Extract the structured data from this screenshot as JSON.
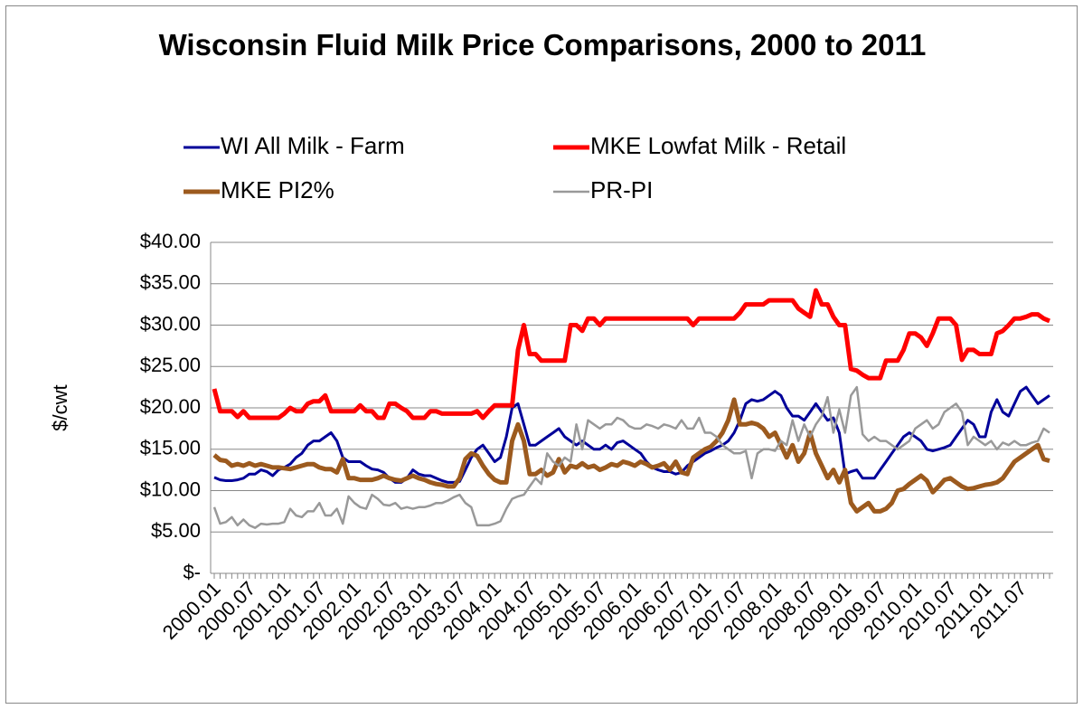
{
  "chart_data": {
    "type": "line",
    "title": "Wisconsin Fluid Milk Price Comparisons, 2000 to 2011",
    "y_label": "$/cwt",
    "categories": [
      "2000.01",
      null,
      null,
      null,
      null,
      null,
      "2000.07",
      null,
      null,
      null,
      null,
      null,
      "2001.01",
      null,
      null,
      null,
      null,
      null,
      "2001.07",
      null,
      null,
      null,
      null,
      null,
      "2002.01",
      null,
      null,
      null,
      null,
      null,
      "2002.07",
      null,
      null,
      null,
      null,
      null,
      "2003.01",
      null,
      null,
      null,
      null,
      null,
      "2003.07",
      null,
      null,
      null,
      null,
      null,
      "2004.01",
      null,
      null,
      null,
      null,
      null,
      "2004.07",
      null,
      null,
      null,
      null,
      null,
      "2005.01",
      null,
      null,
      null,
      null,
      null,
      "2005.07",
      null,
      null,
      null,
      null,
      null,
      "2006.01",
      null,
      null,
      null,
      null,
      null,
      "2006.07",
      null,
      null,
      null,
      null,
      null,
      "2007.01",
      null,
      null,
      null,
      null,
      null,
      "2007.07",
      null,
      null,
      null,
      null,
      null,
      "2008.01",
      null,
      null,
      null,
      null,
      null,
      "2008.07",
      null,
      null,
      null,
      null,
      null,
      "2009.01",
      null,
      null,
      null,
      null,
      null,
      "2009.07",
      null,
      null,
      null,
      null,
      null,
      "2010.01",
      null,
      null,
      null,
      null,
      null,
      "2010.07",
      null,
      null,
      null,
      null,
      null,
      "2011.01",
      null,
      null,
      null,
      null,
      null,
      "2011.07",
      null,
      null,
      null,
      null,
      null
    ],
    "series": [
      {
        "name": "WI All Milk - Farm",
        "color": "#000099",
        "width": 3,
        "values": [
          11.6,
          11.3,
          11.2,
          11.2,
          11.3,
          11.5,
          12.0,
          12.0,
          12.5,
          12.3,
          11.8,
          12.5,
          12.8,
          13.2,
          14.0,
          14.5,
          15.5,
          16.0,
          16.0,
          16.5,
          17.0,
          16.0,
          14.0,
          13.5,
          13.5,
          13.5,
          13.0,
          12.6,
          12.5,
          12.2,
          11.5,
          11.0,
          11.0,
          11.5,
          12.5,
          12.0,
          11.8,
          11.8,
          11.5,
          11.2,
          11.0,
          11.0,
          11.1,
          12.5,
          14.0,
          15.0,
          15.5,
          14.5,
          13.5,
          14.0,
          16.5,
          20.0,
          20.5,
          18.0,
          15.5,
          15.5,
          16.0,
          16.5,
          17.0,
          17.5,
          16.5,
          16.0,
          15.5,
          16.0,
          15.5,
          15.0,
          15.0,
          15.5,
          15.0,
          15.8,
          16.0,
          15.5,
          15.0,
          14.5,
          13.5,
          12.8,
          12.5,
          12.3,
          12.3,
          12.0,
          12.2,
          13.0,
          13.5,
          14.0,
          14.5,
          14.8,
          15.2,
          15.5,
          16.0,
          17.0,
          18.5,
          20.5,
          21.0,
          20.8,
          21.0,
          21.5,
          22.0,
          21.5,
          20.0,
          19.0,
          19.0,
          18.5,
          19.5,
          20.5,
          19.5,
          18.5,
          18.8,
          17.0,
          12.0,
          12.3,
          12.5,
          11.5,
          11.5,
          11.5,
          12.5,
          13.5,
          14.5,
          15.5,
          16.5,
          17.0,
          16.5,
          16.0,
          15.0,
          14.8,
          15.0,
          15.2,
          15.5,
          16.5,
          17.5,
          18.5,
          18.0,
          16.5,
          16.5,
          19.5,
          21.0,
          19.5,
          19.0,
          20.5,
          22.0,
          22.5,
          21.5,
          20.5,
          21.0,
          21.5
        ]
      },
      {
        "name": "MKE Lowfat Milk - Retail",
        "color": "#ff0000",
        "width": 5,
        "values": [
          22.3,
          19.6,
          19.6,
          19.6,
          18.9,
          19.6,
          18.8,
          18.8,
          18.8,
          18.8,
          18.8,
          18.8,
          19.3,
          20.0,
          19.6,
          19.6,
          20.5,
          20.8,
          20.8,
          21.5,
          19.6,
          19.6,
          19.6,
          19.6,
          19.6,
          20.3,
          19.6,
          19.6,
          18.8,
          18.8,
          20.5,
          20.5,
          20.0,
          19.6,
          18.8,
          18.8,
          18.8,
          19.6,
          19.6,
          19.3,
          19.3,
          19.3,
          19.3,
          19.3,
          19.3,
          19.6,
          18.8,
          19.6,
          20.3,
          20.3,
          20.3,
          20.3,
          27.0,
          30.0,
          26.5,
          26.5,
          25.7,
          25.7,
          25.7,
          25.7,
          25.7,
          30.0,
          30.0,
          29.3,
          30.8,
          30.8,
          30.0,
          30.8,
          30.8,
          30.8,
          30.8,
          30.8,
          30.8,
          30.8,
          30.8,
          30.8,
          30.8,
          30.8,
          30.8,
          30.8,
          30.8,
          30.8,
          30.0,
          30.8,
          30.8,
          30.8,
          30.8,
          30.8,
          30.8,
          30.8,
          31.5,
          32.5,
          32.5,
          32.5,
          32.5,
          33.0,
          33.0,
          33.0,
          33.0,
          33.0,
          32.0,
          31.5,
          31.0,
          34.2,
          32.5,
          32.5,
          31.0,
          30.0,
          30.0,
          24.7,
          24.5,
          24.0,
          23.6,
          23.6,
          23.6,
          25.7,
          25.7,
          25.7,
          27.0,
          29.0,
          29.0,
          28.5,
          27.5,
          29.0,
          30.8,
          30.8,
          30.8,
          30.0,
          25.8,
          27.0,
          27.0,
          26.5,
          26.5,
          26.5,
          29.0,
          29.3,
          30.0,
          30.8,
          30.8,
          31.0,
          31.3,
          31.3,
          30.8,
          30.5
        ]
      },
      {
        "name": "MKE PI2%",
        "color": "#9c5a1e",
        "width": 5,
        "values": [
          14.3,
          13.7,
          13.6,
          13.0,
          13.2,
          13.0,
          13.3,
          13.0,
          13.2,
          13.0,
          12.8,
          12.8,
          12.7,
          12.6,
          12.8,
          13.0,
          13.2,
          13.2,
          12.8,
          12.6,
          12.6,
          12.2,
          13.8,
          11.5,
          11.5,
          11.3,
          11.3,
          11.3,
          11.5,
          11.8,
          11.5,
          11.3,
          11.2,
          11.5,
          11.8,
          11.5,
          11.3,
          11.0,
          10.8,
          10.7,
          10.5,
          10.5,
          11.5,
          13.8,
          14.5,
          14.2,
          13.0,
          12.0,
          11.3,
          11.0,
          11.0,
          16.0,
          18.0,
          16.0,
          12.0,
          12.0,
          12.5,
          11.8,
          12.2,
          13.8,
          12.2,
          13.0,
          12.8,
          13.3,
          12.8,
          13.0,
          12.5,
          12.8,
          13.2,
          13.0,
          13.5,
          13.3,
          13.0,
          13.5,
          13.2,
          12.8,
          13.0,
          13.3,
          12.5,
          13.5,
          12.2,
          12.0,
          14.0,
          14.5,
          15.0,
          15.3,
          16.0,
          17.0,
          18.5,
          21.0,
          18.0,
          18.0,
          18.2,
          18.0,
          17.5,
          16.5,
          17.0,
          15.5,
          14.0,
          15.5,
          13.5,
          14.5,
          17.0,
          14.5,
          13.0,
          11.5,
          12.5,
          11.0,
          12.5,
          8.5,
          7.5,
          8.0,
          8.5,
          7.5,
          7.5,
          7.8,
          8.5,
          10.0,
          10.2,
          10.8,
          11.3,
          11.8,
          11.2,
          9.8,
          10.5,
          11.3,
          11.5,
          11.0,
          10.5,
          10.2,
          10.3,
          10.5,
          10.7,
          10.8,
          11.0,
          11.5,
          12.5,
          13.5,
          14.0,
          14.5,
          15.0,
          15.5,
          13.8,
          13.6
        ]
      },
      {
        "name": "PR-PI",
        "color": "#999999",
        "width": 2.5,
        "values": [
          8.0,
          6.0,
          6.2,
          6.8,
          5.8,
          6.5,
          5.8,
          5.5,
          6.0,
          5.9,
          6.0,
          6.0,
          6.2,
          7.8,
          7.0,
          6.8,
          7.5,
          7.5,
          8.5,
          7.0,
          7.0,
          7.8,
          6.0,
          9.3,
          8.5,
          8.0,
          7.8,
          9.5,
          9.0,
          8.3,
          8.2,
          8.5,
          7.8,
          8.0,
          7.8,
          8.0,
          8.0,
          8.2,
          8.5,
          8.5,
          8.8,
          9.2,
          9.5,
          8.5,
          8.0,
          5.8,
          5.8,
          5.8,
          6.0,
          6.3,
          7.8,
          9.0,
          9.3,
          9.5,
          10.5,
          11.5,
          10.8,
          14.5,
          13.5,
          13.0,
          14.0,
          13.5,
          18.0,
          15.0,
          18.5,
          18.0,
          17.5,
          18.0,
          18.0,
          18.8,
          18.5,
          17.8,
          17.5,
          17.5,
          18.0,
          17.8,
          17.5,
          18.0,
          17.8,
          17.5,
          18.5,
          17.5,
          17.5,
          18.8,
          17.0,
          17.0,
          16.5,
          15.5,
          15.0,
          14.5,
          14.5,
          14.8,
          11.5,
          14.5,
          15.0,
          15.0,
          14.8,
          16.0,
          15.5,
          18.5,
          16.0,
          18.0,
          16.5,
          18.0,
          19.0,
          21.3,
          17.0,
          19.8,
          17.0,
          21.5,
          22.5,
          16.8,
          16.0,
          16.5,
          16.0,
          16.0,
          15.5,
          15.0,
          15.5,
          16.0,
          17.5,
          18.0,
          18.5,
          17.5,
          18.0,
          19.5,
          20.0,
          20.5,
          19.5,
          15.5,
          16.5,
          16.0,
          15.5,
          16.0,
          15.0,
          15.8,
          15.5,
          16.0,
          15.5,
          15.5,
          15.8,
          16.0,
          17.5,
          17.0
        ]
      }
    ],
    "ylim": [
      0,
      40
    ],
    "yticks": [
      {
        "value": 0,
        "label": "$-"
      },
      {
        "value": 5,
        "label": "$5.00"
      },
      {
        "value": 10,
        "label": "$10.00"
      },
      {
        "value": 15,
        "label": "$15.00"
      },
      {
        "value": 20,
        "label": "$20.00"
      },
      {
        "value": 25,
        "label": "$25.00"
      },
      {
        "value": 30,
        "label": "$30.00"
      },
      {
        "value": 35,
        "label": "$35.00"
      },
      {
        "value": 40,
        "label": "$40.00"
      }
    ],
    "grid": true,
    "legend": "top"
  }
}
